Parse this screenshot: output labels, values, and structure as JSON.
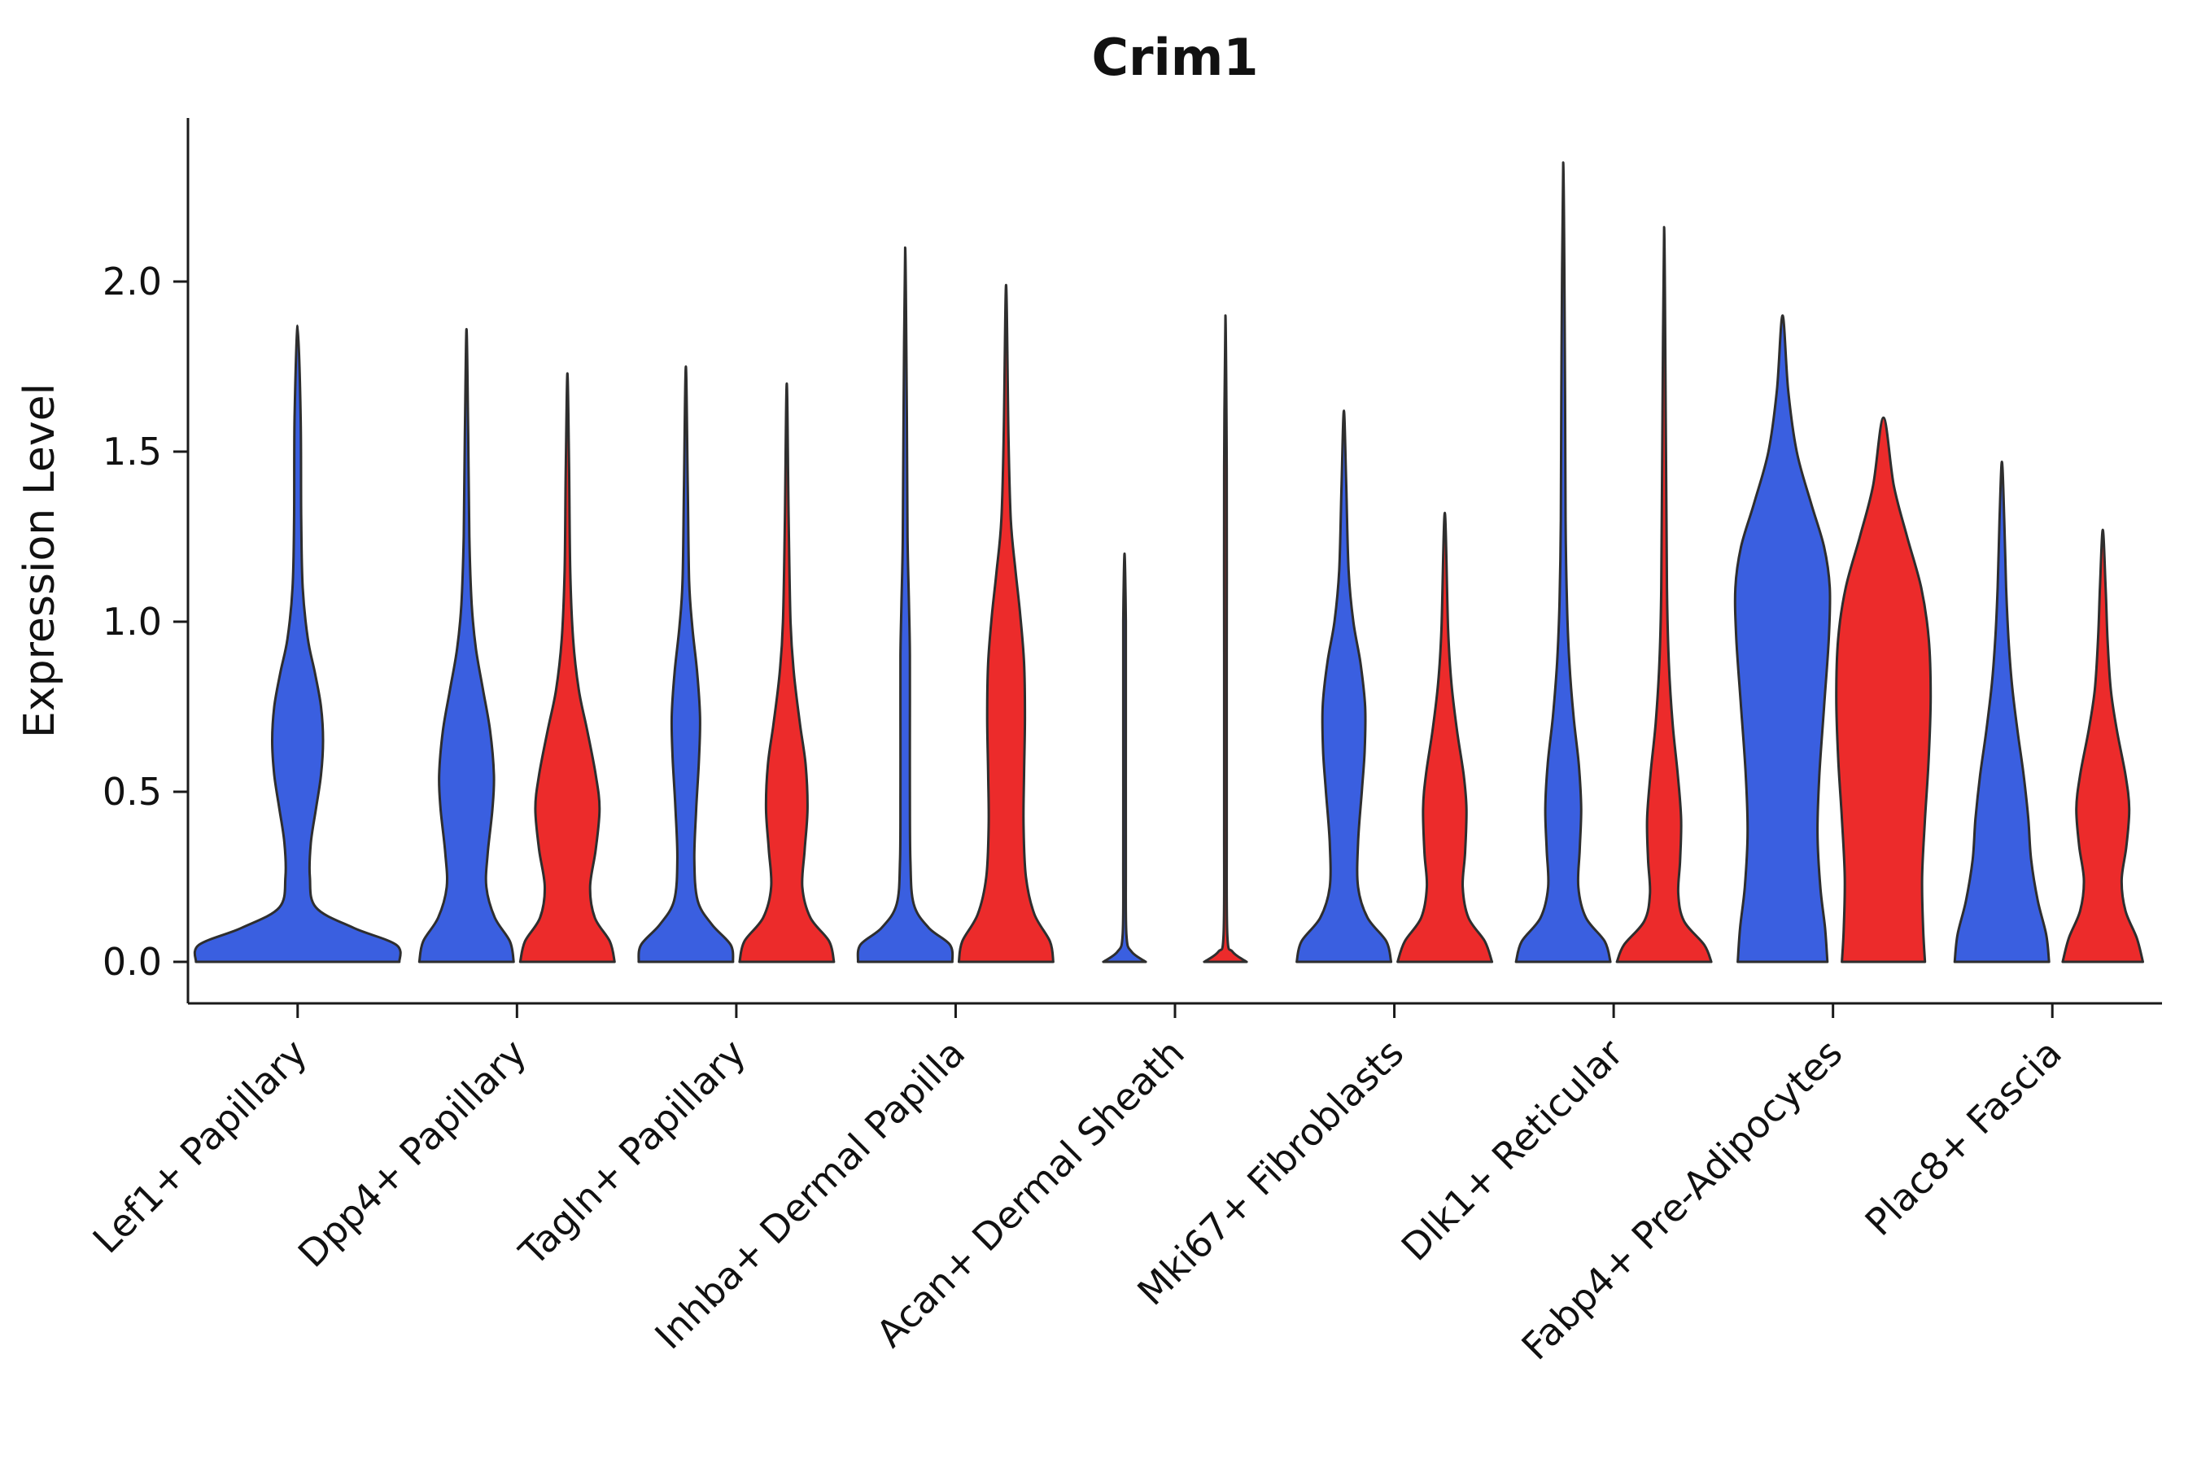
{
  "title": "Crim1",
  "colors": {
    "blue": "#3A5FE0",
    "red": "#EC2B2B",
    "outline": "#2E2E2E",
    "axis": "#1A1A1A"
  },
  "chart_data": {
    "type": "violin",
    "title": "Crim1",
    "xlabel": "",
    "ylabel": "Expression Level",
    "ylim": [
      0,
      2.45
    ],
    "yticks": [
      0.0,
      0.5,
      1.0,
      1.5,
      2.0
    ],
    "ytick_labels": [
      "0.0",
      "0.5",
      "1.0",
      "1.5",
      "2.0"
    ],
    "legend": "none",
    "grid": false,
    "x_label_rotation_deg": 45,
    "categories": [
      "Lef1+ Papillary",
      "Dpp4+ Papillary",
      "Tagln+ Papillary",
      "Inhba+ Dermal Papilla",
      "Acan+ Dermal Sheath",
      "Mki67+ Fibroblasts",
      "Dlk1+ Reticular",
      "Fabp4+ Pre-Adipocytes",
      "Plac8+ Fascia"
    ],
    "groups": [
      "blue",
      "red"
    ],
    "violins": [
      {
        "cat": 0,
        "group": "blue",
        "max": 1.87,
        "profile": [
          [
            0,
            1.0
          ],
          [
            0.05,
            0.97
          ],
          [
            0.1,
            0.55
          ],
          [
            0.16,
            0.18
          ],
          [
            0.25,
            0.12
          ],
          [
            0.35,
            0.13
          ],
          [
            0.45,
            0.18
          ],
          [
            0.55,
            0.23
          ],
          [
            0.65,
            0.25
          ],
          [
            0.75,
            0.23
          ],
          [
            0.85,
            0.17
          ],
          [
            0.95,
            0.1
          ],
          [
            1.1,
            0.05
          ],
          [
            1.3,
            0.035
          ],
          [
            1.6,
            0.03
          ],
          [
            1.87,
            0
          ]
        ]
      },
      {
        "cat": 1,
        "group": "blue",
        "max": 1.86,
        "profile": [
          [
            0,
            1.0
          ],
          [
            0.06,
            0.92
          ],
          [
            0.13,
            0.6
          ],
          [
            0.22,
            0.42
          ],
          [
            0.32,
            0.45
          ],
          [
            0.45,
            0.55
          ],
          [
            0.55,
            0.58
          ],
          [
            0.68,
            0.5
          ],
          [
            0.8,
            0.35
          ],
          [
            0.92,
            0.2
          ],
          [
            1.05,
            0.11
          ],
          [
            1.25,
            0.06
          ],
          [
            1.55,
            0.035
          ],
          [
            1.86,
            0
          ]
        ]
      },
      {
        "cat": 1,
        "group": "red",
        "max": 1.73,
        "profile": [
          [
            0,
            1.0
          ],
          [
            0.06,
            0.9
          ],
          [
            0.13,
            0.58
          ],
          [
            0.22,
            0.48
          ],
          [
            0.33,
            0.6
          ],
          [
            0.45,
            0.68
          ],
          [
            0.55,
            0.6
          ],
          [
            0.68,
            0.42
          ],
          [
            0.8,
            0.24
          ],
          [
            0.95,
            0.12
          ],
          [
            1.15,
            0.06
          ],
          [
            1.45,
            0.035
          ],
          [
            1.73,
            0
          ]
        ]
      },
      {
        "cat": 2,
        "group": "blue",
        "max": 1.75,
        "profile": [
          [
            0,
            1.0
          ],
          [
            0.05,
            0.95
          ],
          [
            0.11,
            0.55
          ],
          [
            0.18,
            0.25
          ],
          [
            0.3,
            0.18
          ],
          [
            0.45,
            0.22
          ],
          [
            0.6,
            0.28
          ],
          [
            0.72,
            0.3
          ],
          [
            0.85,
            0.24
          ],
          [
            0.98,
            0.14
          ],
          [
            1.12,
            0.07
          ],
          [
            1.4,
            0.04
          ],
          [
            1.75,
            0
          ]
        ]
      },
      {
        "cat": 2,
        "group": "red",
        "max": 1.7,
        "profile": [
          [
            0,
            1.0
          ],
          [
            0.06,
            0.9
          ],
          [
            0.13,
            0.5
          ],
          [
            0.22,
            0.33
          ],
          [
            0.33,
            0.38
          ],
          [
            0.45,
            0.44
          ],
          [
            0.58,
            0.4
          ],
          [
            0.7,
            0.28
          ],
          [
            0.85,
            0.15
          ],
          [
            1.0,
            0.08
          ],
          [
            1.3,
            0.04
          ],
          [
            1.7,
            0
          ]
        ]
      },
      {
        "cat": 3,
        "group": "blue",
        "max": 2.1,
        "profile": [
          [
            0,
            1.0
          ],
          [
            0.05,
            0.95
          ],
          [
            0.1,
            0.5
          ],
          [
            0.17,
            0.18
          ],
          [
            0.3,
            0.11
          ],
          [
            0.5,
            0.1
          ],
          [
            0.7,
            0.1
          ],
          [
            0.9,
            0.1
          ],
          [
            1.05,
            0.08
          ],
          [
            1.25,
            0.05
          ],
          [
            1.6,
            0.035
          ],
          [
            2.1,
            0
          ]
        ]
      },
      {
        "cat": 3,
        "group": "red",
        "max": 1.99,
        "profile": [
          [
            0,
            1.0
          ],
          [
            0.06,
            0.93
          ],
          [
            0.14,
            0.6
          ],
          [
            0.25,
            0.42
          ],
          [
            0.4,
            0.37
          ],
          [
            0.55,
            0.38
          ],
          [
            0.72,
            0.4
          ],
          [
            0.88,
            0.38
          ],
          [
            1.02,
            0.3
          ],
          [
            1.15,
            0.2
          ],
          [
            1.3,
            0.1
          ],
          [
            1.55,
            0.05
          ],
          [
            1.99,
            0
          ]
        ]
      },
      {
        "cat": 4,
        "group": "blue",
        "max": 1.2,
        "profile": [
          [
            0,
            0.45
          ],
          [
            0.03,
            0.15
          ],
          [
            0.08,
            0.04
          ],
          [
            0.3,
            0.025
          ],
          [
            0.7,
            0.022
          ],
          [
            1.0,
            0.02
          ],
          [
            1.2,
            0
          ]
        ]
      },
      {
        "cat": 4,
        "group": "red",
        "max": 1.9,
        "profile": [
          [
            0,
            0.45
          ],
          [
            0.03,
            0.15
          ],
          [
            0.08,
            0.04
          ],
          [
            0.4,
            0.025
          ],
          [
            0.9,
            0.022
          ],
          [
            1.45,
            0.02
          ],
          [
            1.9,
            0
          ]
        ]
      },
      {
        "cat": 5,
        "group": "blue",
        "max": 1.62,
        "profile": [
          [
            0,
            1.0
          ],
          [
            0.06,
            0.9
          ],
          [
            0.13,
            0.5
          ],
          [
            0.22,
            0.3
          ],
          [
            0.35,
            0.3
          ],
          [
            0.5,
            0.38
          ],
          [
            0.62,
            0.44
          ],
          [
            0.75,
            0.45
          ],
          [
            0.88,
            0.35
          ],
          [
            1.0,
            0.2
          ],
          [
            1.15,
            0.1
          ],
          [
            1.4,
            0.05
          ],
          [
            1.62,
            0
          ]
        ]
      },
      {
        "cat": 5,
        "group": "red",
        "max": 1.32,
        "profile": [
          [
            0,
            1.0
          ],
          [
            0.06,
            0.85
          ],
          [
            0.13,
            0.5
          ],
          [
            0.22,
            0.38
          ],
          [
            0.32,
            0.43
          ],
          [
            0.45,
            0.46
          ],
          [
            0.55,
            0.4
          ],
          [
            0.68,
            0.26
          ],
          [
            0.82,
            0.14
          ],
          [
            0.98,
            0.07
          ],
          [
            1.32,
            0
          ]
        ]
      },
      {
        "cat": 6,
        "group": "blue",
        "max": 2.35,
        "profile": [
          [
            0,
            1.0
          ],
          [
            0.06,
            0.88
          ],
          [
            0.13,
            0.48
          ],
          [
            0.22,
            0.32
          ],
          [
            0.33,
            0.35
          ],
          [
            0.45,
            0.38
          ],
          [
            0.58,
            0.33
          ],
          [
            0.72,
            0.22
          ],
          [
            0.88,
            0.13
          ],
          [
            1.05,
            0.08
          ],
          [
            1.3,
            0.05
          ],
          [
            1.8,
            0.035
          ],
          [
            2.35,
            0
          ]
        ]
      },
      {
        "cat": 6,
        "group": "red",
        "max": 2.16,
        "profile": [
          [
            0,
            1.0
          ],
          [
            0.05,
            0.85
          ],
          [
            0.12,
            0.42
          ],
          [
            0.2,
            0.3
          ],
          [
            0.3,
            0.34
          ],
          [
            0.42,
            0.36
          ],
          [
            0.55,
            0.29
          ],
          [
            0.7,
            0.18
          ],
          [
            0.88,
            0.1
          ],
          [
            1.1,
            0.06
          ],
          [
            1.6,
            0.035
          ],
          [
            2.16,
            0
          ]
        ]
      },
      {
        "cat": 7,
        "group": "blue",
        "max": 1.9,
        "profile": [
          [
            0,
            0.95
          ],
          [
            0.1,
            0.9
          ],
          [
            0.22,
            0.8
          ],
          [
            0.38,
            0.74
          ],
          [
            0.55,
            0.78
          ],
          [
            0.75,
            0.88
          ],
          [
            0.95,
            0.98
          ],
          [
            1.1,
            1.0
          ],
          [
            1.22,
            0.88
          ],
          [
            1.35,
            0.6
          ],
          [
            1.5,
            0.3
          ],
          [
            1.68,
            0.12
          ],
          [
            1.9,
            0
          ]
        ]
      },
      {
        "cat": 7,
        "group": "red",
        "max": 1.6,
        "profile": [
          [
            0,
            0.88
          ],
          [
            0.1,
            0.84
          ],
          [
            0.25,
            0.82
          ],
          [
            0.42,
            0.88
          ],
          [
            0.6,
            0.96
          ],
          [
            0.78,
            1.0
          ],
          [
            0.95,
            0.96
          ],
          [
            1.1,
            0.8
          ],
          [
            1.25,
            0.5
          ],
          [
            1.4,
            0.22
          ],
          [
            1.6,
            0
          ]
        ]
      },
      {
        "cat": 8,
        "group": "blue",
        "max": 1.47,
        "profile": [
          [
            0,
            1.0
          ],
          [
            0.08,
            0.94
          ],
          [
            0.18,
            0.76
          ],
          [
            0.3,
            0.62
          ],
          [
            0.42,
            0.56
          ],
          [
            0.55,
            0.46
          ],
          [
            0.68,
            0.33
          ],
          [
            0.82,
            0.21
          ],
          [
            0.95,
            0.14
          ],
          [
            1.1,
            0.09
          ],
          [
            1.3,
            0.05
          ],
          [
            1.47,
            0
          ]
        ]
      },
      {
        "cat": 8,
        "group": "red",
        "max": 1.27,
        "profile": [
          [
            0,
            0.85
          ],
          [
            0.07,
            0.72
          ],
          [
            0.15,
            0.48
          ],
          [
            0.24,
            0.4
          ],
          [
            0.34,
            0.5
          ],
          [
            0.45,
            0.56
          ],
          [
            0.55,
            0.48
          ],
          [
            0.68,
            0.3
          ],
          [
            0.8,
            0.17
          ],
          [
            0.95,
            0.1
          ],
          [
            1.1,
            0.06
          ],
          [
            1.27,
            0
          ]
        ]
      }
    ]
  }
}
